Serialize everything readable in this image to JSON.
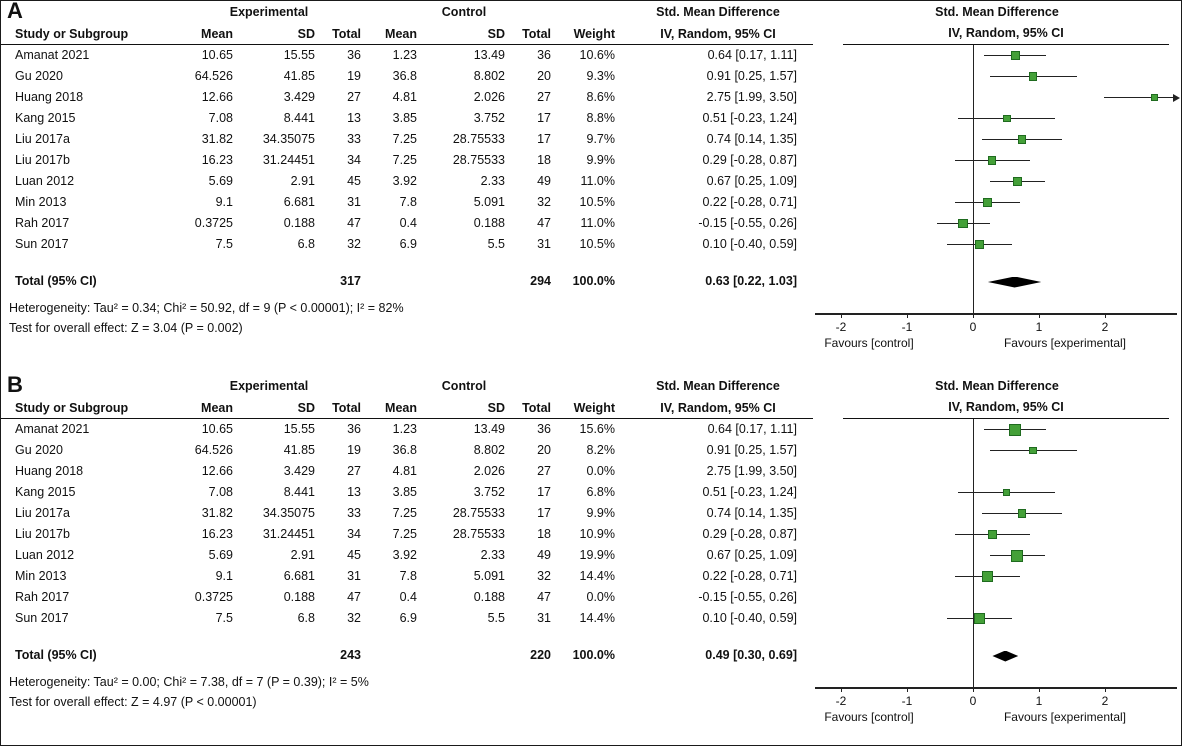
{
  "figure": {
    "marker_fill": "#44a038",
    "marker_border": "#1f6b1f",
    "ci_color": "#222222",
    "diamond_color": "#000000",
    "axis_color": "#222222"
  },
  "chart_data": {
    "type": "forest",
    "panels": [
      {
        "label": "A",
        "columns": {
          "group_experimental": "Experimental",
          "group_control": "Control",
          "smd_text": "Std. Mean Difference",
          "smd_plot": "Std. Mean Difference",
          "study": "Study or Subgroup",
          "mean": "Mean",
          "sd": "SD",
          "total": "Total",
          "mean2": "Mean",
          "sd2": "SD",
          "total2": "Total",
          "weight": "Weight",
          "ci": "IV, Random, 95% CI",
          "ci_plot": "IV, Random, 95% CI"
        },
        "studies": [
          {
            "name": "Amanat 2021",
            "mean1": "10.65",
            "sd1": "15.55",
            "n1": "36",
            "mean2": "1.23",
            "sd2": "13.49",
            "n2": "36",
            "weight": "10.6%",
            "ci": "0.64 [0.17, 1.11]",
            "est": 0.64,
            "lo": 0.17,
            "hi": 1.11,
            "w": 10.6
          },
          {
            "name": "Gu 2020",
            "mean1": "64.526",
            "sd1": "41.85",
            "n1": "19",
            "mean2": "36.8",
            "sd2": "8.802",
            "n2": "20",
            "weight": "9.3%",
            "ci": "0.91 [0.25, 1.57]",
            "est": 0.91,
            "lo": 0.25,
            "hi": 1.57,
            "w": 9.3
          },
          {
            "name": "Huang 2018",
            "mean1": "12.66",
            "sd1": "3.429",
            "n1": "27",
            "mean2": "4.81",
            "sd2": "2.026",
            "n2": "27",
            "weight": "8.6%",
            "ci": "2.75 [1.99, 3.50]",
            "est": 2.75,
            "lo": 1.99,
            "hi": 3.5,
            "w": 8.6
          },
          {
            "name": "Kang 2015",
            "mean1": "7.08",
            "sd1": "8.441",
            "n1": "13",
            "mean2": "3.85",
            "sd2": "3.752",
            "n2": "17",
            "weight": "8.8%",
            "ci": "0.51 [-0.23, 1.24]",
            "est": 0.51,
            "lo": -0.23,
            "hi": 1.24,
            "w": 8.8
          },
          {
            "name": "Liu 2017a",
            "mean1": "31.82",
            "sd1": "34.35075",
            "n1": "33",
            "mean2": "7.25",
            "sd2": "28.75533",
            "n2": "17",
            "weight": "9.7%",
            "ci": "0.74 [0.14, 1.35]",
            "est": 0.74,
            "lo": 0.14,
            "hi": 1.35,
            "w": 9.7
          },
          {
            "name": "Liu 2017b",
            "mean1": "16.23",
            "sd1": "31.24451",
            "n1": "34",
            "mean2": "7.25",
            "sd2": "28.75533",
            "n2": "18",
            "weight": "9.9%",
            "ci": "0.29 [-0.28, 0.87]",
            "est": 0.29,
            "lo": -0.28,
            "hi": 0.87,
            "w": 9.9
          },
          {
            "name": "Luan 2012",
            "mean1": "5.69",
            "sd1": "2.91",
            "n1": "45",
            "mean2": "3.92",
            "sd2": "2.33",
            "n2": "49",
            "weight": "11.0%",
            "ci": "0.67 [0.25, 1.09]",
            "est": 0.67,
            "lo": 0.25,
            "hi": 1.09,
            "w": 11.0
          },
          {
            "name": "Min 2013",
            "mean1": "9.1",
            "sd1": "6.681",
            "n1": "31",
            "mean2": "7.8",
            "sd2": "5.091",
            "n2": "32",
            "weight": "10.5%",
            "ci": "0.22 [-0.28, 0.71]",
            "est": 0.22,
            "lo": -0.28,
            "hi": 0.71,
            "w": 10.5
          },
          {
            "name": "Rah 2017",
            "mean1": "0.3725",
            "sd1": "0.188",
            "n1": "47",
            "mean2": "0.4",
            "sd2": "0.188",
            "n2": "47",
            "weight": "11.0%",
            "ci": "-0.15 [-0.55, 0.26]",
            "est": -0.15,
            "lo": -0.55,
            "hi": 0.26,
            "w": 11.0
          },
          {
            "name": "Sun 2017",
            "mean1": "7.5",
            "sd1": "6.8",
            "n1": "32",
            "mean2": "6.9",
            "sd2": "5.5",
            "n2": "31",
            "weight": "10.5%",
            "ci": "0.10 [-0.40, 0.59]",
            "est": 0.1,
            "lo": -0.4,
            "hi": 0.59,
            "w": 10.5
          }
        ],
        "total": {
          "label": "Total (95% CI)",
          "n1": "317",
          "n2": "294",
          "weight": "100.0%",
          "ci": "0.63 [0.22, 1.03]",
          "est": 0.63,
          "lo": 0.22,
          "hi": 1.03
        },
        "heterogeneity": "Heterogeneity: Tau² = 0.34; Chi² = 50.92, df = 9 (P < 0.00001); I² = 82%",
        "overall_effect": "Test for overall effect: Z = 3.04 (P = 0.002)",
        "axis": {
          "ticks": [
            -2,
            -1,
            0,
            1,
            2
          ],
          "favours_left": "Favours [control]",
          "favours_right": "Favours [experimental]"
        }
      },
      {
        "label": "B",
        "columns": {
          "group_experimental": "Experimental",
          "group_control": "Control",
          "smd_text": "Std. Mean Difference",
          "smd_plot": "Std. Mean Difference",
          "study": "Study or Subgroup",
          "mean": "Mean",
          "sd": "SD",
          "total": "Total",
          "mean2": "Mean",
          "sd2": "SD",
          "total2": "Total",
          "weight": "Weight",
          "ci": "IV, Random, 95% CI",
          "ci_plot": "IV, Random, 95% CI"
        },
        "studies": [
          {
            "name": "Amanat 2021",
            "mean1": "10.65",
            "sd1": "15.55",
            "n1": "36",
            "mean2": "1.23",
            "sd2": "13.49",
            "n2": "36",
            "weight": "15.6%",
            "ci": "0.64 [0.17, 1.11]",
            "est": 0.64,
            "lo": 0.17,
            "hi": 1.11,
            "w": 15.6
          },
          {
            "name": "Gu 2020",
            "mean1": "64.526",
            "sd1": "41.85",
            "n1": "19",
            "mean2": "36.8",
            "sd2": "8.802",
            "n2": "20",
            "weight": "8.2%",
            "ci": "0.91 [0.25, 1.57]",
            "est": 0.91,
            "lo": 0.25,
            "hi": 1.57,
            "w": 8.2
          },
          {
            "name": "Huang 2018",
            "mean1": "12.66",
            "sd1": "3.429",
            "n1": "27",
            "mean2": "4.81",
            "sd2": "2.026",
            "n2": "27",
            "weight": "0.0%",
            "ci": "2.75 [1.99, 3.50]",
            "est": 2.75,
            "lo": 1.99,
            "hi": 3.5,
            "w": 0
          },
          {
            "name": "Kang 2015",
            "mean1": "7.08",
            "sd1": "8.441",
            "n1": "13",
            "mean2": "3.85",
            "sd2": "3.752",
            "n2": "17",
            "weight": "6.8%",
            "ci": "0.51 [-0.23, 1.24]",
            "est": 0.51,
            "lo": -0.23,
            "hi": 1.24,
            "w": 6.8
          },
          {
            "name": "Liu 2017a",
            "mean1": "31.82",
            "sd1": "34.35075",
            "n1": "33",
            "mean2": "7.25",
            "sd2": "28.75533",
            "n2": "17",
            "weight": "9.9%",
            "ci": "0.74 [0.14, 1.35]",
            "est": 0.74,
            "lo": 0.14,
            "hi": 1.35,
            "w": 9.9
          },
          {
            "name": "Liu 2017b",
            "mean1": "16.23",
            "sd1": "31.24451",
            "n1": "34",
            "mean2": "7.25",
            "sd2": "28.75533",
            "n2": "18",
            "weight": "10.9%",
            "ci": "0.29 [-0.28, 0.87]",
            "est": 0.29,
            "lo": -0.28,
            "hi": 0.87,
            "w": 10.9
          },
          {
            "name": "Luan 2012",
            "mean1": "5.69",
            "sd1": "2.91",
            "n1": "45",
            "mean2": "3.92",
            "sd2": "2.33",
            "n2": "49",
            "weight": "19.9%",
            "ci": "0.67 [0.25, 1.09]",
            "est": 0.67,
            "lo": 0.25,
            "hi": 1.09,
            "w": 19.9
          },
          {
            "name": "Min 2013",
            "mean1": "9.1",
            "sd1": "6.681",
            "n1": "31",
            "mean2": "7.8",
            "sd2": "5.091",
            "n2": "32",
            "weight": "14.4%",
            "ci": "0.22 [-0.28, 0.71]",
            "est": 0.22,
            "lo": -0.28,
            "hi": 0.71,
            "w": 14.4
          },
          {
            "name": "Rah 2017",
            "mean1": "0.3725",
            "sd1": "0.188",
            "n1": "47",
            "mean2": "0.4",
            "sd2": "0.188",
            "n2": "47",
            "weight": "0.0%",
            "ci": "-0.15 [-0.55, 0.26]",
            "est": -0.15,
            "lo": -0.55,
            "hi": 0.26,
            "w": 0
          },
          {
            "name": "Sun 2017",
            "mean1": "7.5",
            "sd1": "6.8",
            "n1": "32",
            "mean2": "6.9",
            "sd2": "5.5",
            "n2": "31",
            "weight": "14.4%",
            "ci": "0.10 [-0.40, 0.59]",
            "est": 0.1,
            "lo": -0.4,
            "hi": 0.59,
            "w": 14.4
          }
        ],
        "total": {
          "label": "Total (95% CI)",
          "n1": "243",
          "n2": "220",
          "weight": "100.0%",
          "ci": "0.49 [0.30, 0.69]",
          "est": 0.49,
          "lo": 0.3,
          "hi": 0.69
        },
        "heterogeneity": "Heterogeneity: Tau² = 0.00; Chi² = 7.38, df = 7 (P = 0.39); I² = 5%",
        "overall_effect": "Test for overall effect: Z = 4.97 (P < 0.00001)",
        "axis": {
          "ticks": [
            -2,
            -1,
            0,
            1,
            2
          ],
          "favours_left": "Favours [control]",
          "favours_right": "Favours [experimental]"
        }
      }
    ]
  }
}
